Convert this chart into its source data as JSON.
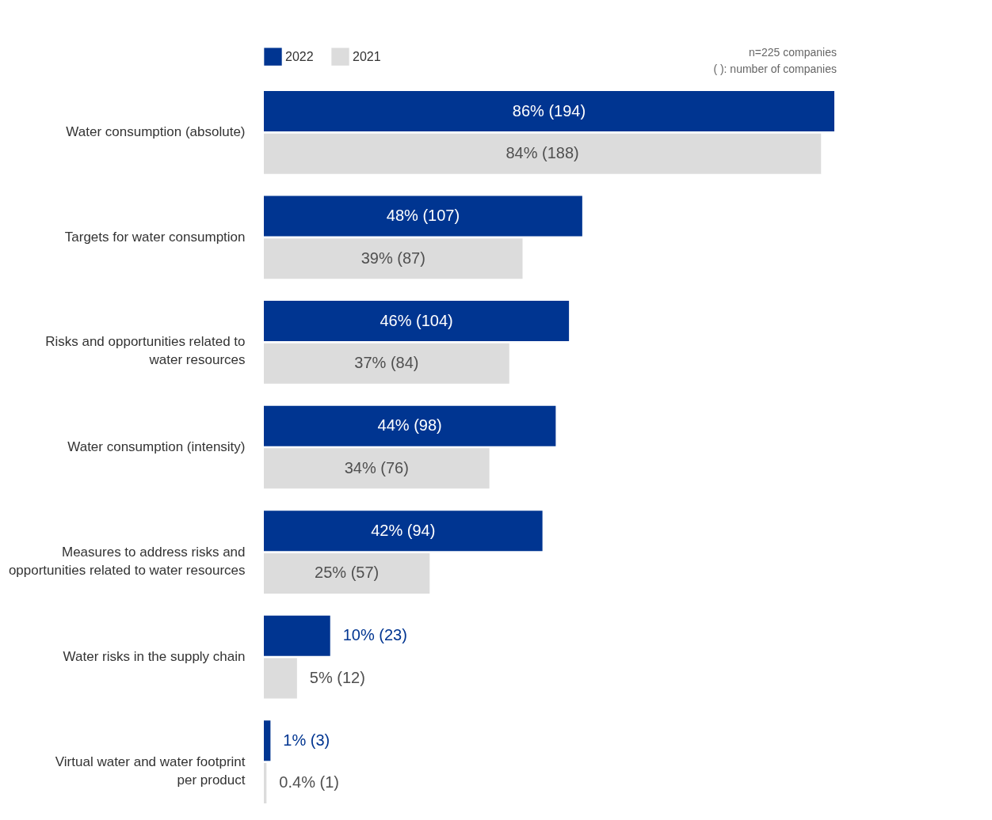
{
  "chart_data": {
    "type": "bar",
    "orientation": "horizontal",
    "categories": [
      "Water consumption (absolute)",
      "Targets for water consumption",
      "Risks and opportunities related to\nwater resources",
      "Water consumption (intensity)",
      "Measures to address risks and\nopportunities related to water resources",
      "Water risks in the supply chain",
      "Virtual water and water footprint\nper product"
    ],
    "series": [
      {
        "name": "2022",
        "color": "#003591",
        "values": [
          86,
          48,
          46,
          44,
          42,
          10,
          1
        ],
        "value_labels": [
          "86% (194)",
          "48% (107)",
          "46% (104)",
          "44% (98)",
          "42% (94)",
          "10% (23)",
          "1% (3)"
        ]
      },
      {
        "name": "2021",
        "color": "#dcdcdc",
        "values": [
          84,
          39,
          37,
          34,
          25,
          5,
          0.4
        ],
        "value_labels": [
          "84% (188)",
          "39% (87)",
          "37% (84)",
          "34% (76)",
          "25% (57)",
          "5% (12)",
          "0.4% (1)"
        ]
      }
    ],
    "xlim": [
      0,
      86
    ],
    "legend": "top left",
    "grid": false,
    "annotations": [
      "n=225 companies",
      "( ): number of companies"
    ]
  }
}
